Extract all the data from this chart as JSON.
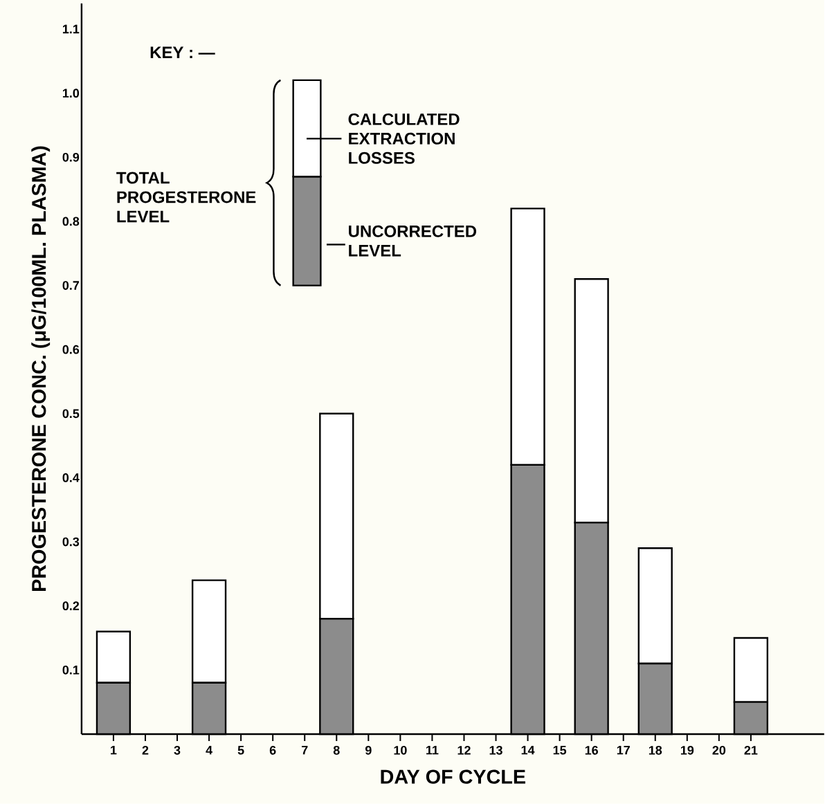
{
  "chart_data": {
    "type": "bar",
    "stacked": true,
    "xlabel": "DAY OF CYCLE",
    "ylabel": "PROGESTERONE CONC. (μG/100ML. PLASMA)",
    "legend_title": "KEY : —",
    "annotations": [
      "TOTAL PROGESTERONE LEVEL"
    ],
    "x": [
      1,
      4,
      8,
      14,
      16,
      18,
      21
    ],
    "series": [
      {
        "name": "UNCORRECTED LEVEL",
        "color": "#8c8c8c",
        "values": [
          0.08,
          0.08,
          0.18,
          0.42,
          0.33,
          0.11,
          0.05
        ]
      },
      {
        "name": "CALCULATED EXTRACTION LOSSES",
        "color": "#ffffff",
        "values": [
          0.08,
          0.16,
          0.32,
          0.4,
          0.38,
          0.18,
          0.1
        ]
      }
    ],
    "xlim": [
      0,
      23.3
    ],
    "xticks": [
      1,
      2,
      3,
      4,
      5,
      6,
      7,
      8,
      9,
      10,
      11,
      12,
      13,
      14,
      15,
      16,
      17,
      18,
      19,
      20,
      21
    ],
    "ylim": [
      0,
      1.14
    ],
    "yticks": [
      0.1,
      0.2,
      0.3,
      0.4,
      0.5,
      0.6,
      0.7,
      0.8,
      0.9,
      {
        "value": 1,
        "label": "1.0"
      },
      1.1
    ],
    "legend": "top left"
  }
}
